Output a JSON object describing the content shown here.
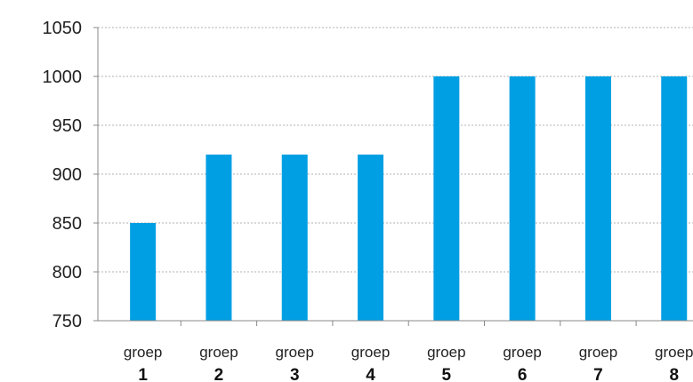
{
  "chart_data": {
    "type": "bar",
    "title": "",
    "xlabel": "",
    "ylabel": "",
    "categories": [
      {
        "word": "groep",
        "number": "1"
      },
      {
        "word": "groep",
        "number": "2"
      },
      {
        "word": "groep",
        "number": "3"
      },
      {
        "word": "groep",
        "number": "4"
      },
      {
        "word": "groep",
        "number": "5"
      },
      {
        "word": "groep",
        "number": "6"
      },
      {
        "word": "groep",
        "number": "7"
      },
      {
        "word": "groep",
        "number": "8"
      }
    ],
    "values": [
      850,
      920,
      920,
      920,
      1000,
      1000,
      1000,
      1000
    ],
    "ylim": [
      750,
      1050
    ],
    "yticks": [
      "750",
      "800",
      "850",
      "900",
      "950",
      "1000",
      "1050"
    ],
    "grid": true,
    "legend": "none",
    "bar_color": "#009fe3",
    "grid_color": "#b0b0b0",
    "axis_color": "#888888"
  }
}
